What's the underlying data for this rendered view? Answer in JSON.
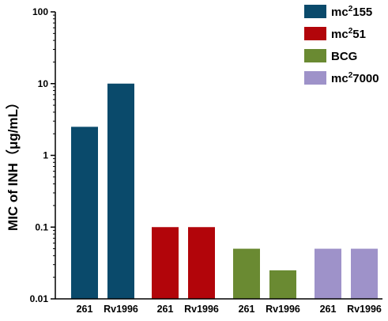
{
  "chart_data": {
    "type": "bar",
    "scale": "log",
    "ylim": [
      0.01,
      100
    ],
    "yticks": [
      "0.01",
      "0.1",
      "1",
      "10",
      "100"
    ],
    "ylabel": "MIC of INH（μg/mL）",
    "xlabel": "",
    "grid": false,
    "legend_position": "top-right",
    "groups": [
      {
        "name": "mc²155",
        "legend_base": "mc",
        "legend_sup": "2",
        "legend_rest": "155",
        "color": "#0a4a6b",
        "bars": [
          {
            "label": "261",
            "value": 2.5
          },
          {
            "label": "Rv1996",
            "value": 10
          }
        ]
      },
      {
        "name": "mc²51",
        "legend_base": "mc",
        "legend_sup": "2",
        "legend_rest": "51",
        "color": "#b2050a",
        "bars": [
          {
            "label": "261",
            "value": 0.1
          },
          {
            "label": "Rv1996",
            "value": 0.1
          }
        ]
      },
      {
        "name": "BCG",
        "legend_base": "BCG",
        "legend_sup": "",
        "legend_rest": "",
        "color": "#6a8a32",
        "bars": [
          {
            "label": "261",
            "value": 0.05
          },
          {
            "label": "Rv1996",
            "value": 0.025
          }
        ]
      },
      {
        "name": "mc²7000",
        "legend_base": "mc",
        "legend_sup": "2",
        "legend_rest": "7000",
        "color": "#9e92c9",
        "bars": [
          {
            "label": "261",
            "value": 0.05
          },
          {
            "label": "Rv1996",
            "value": 0.05
          }
        ]
      }
    ]
  }
}
